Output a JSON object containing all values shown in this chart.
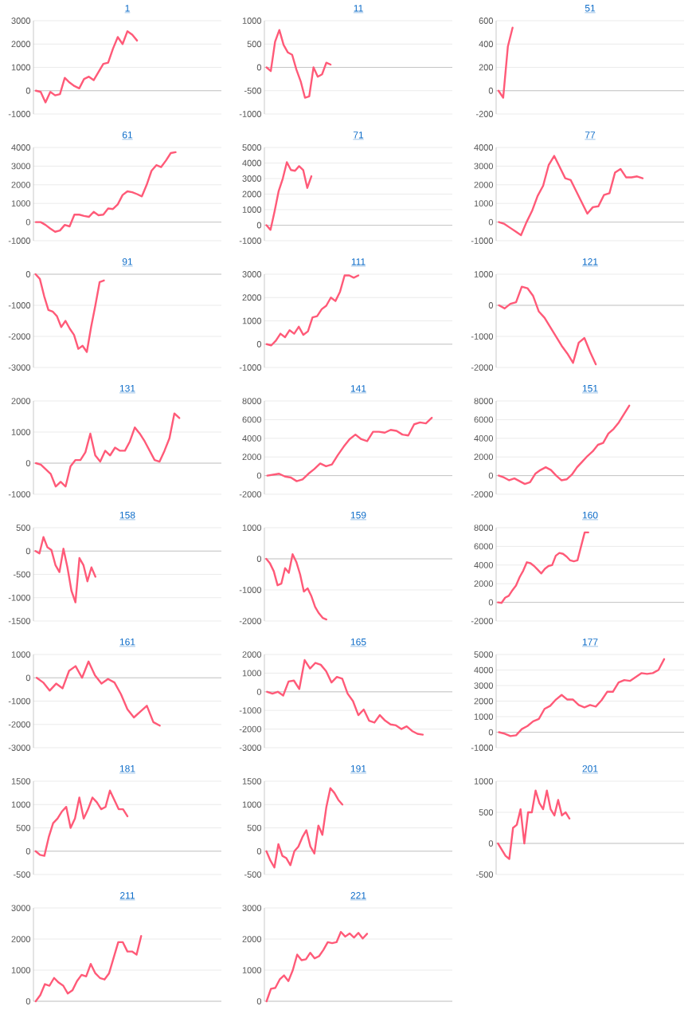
{
  "chart_data": [
    {
      "type": "line",
      "title": "1",
      "color": "#ff5a78",
      "grid": "y",
      "tick_labels": "y",
      "ylim": [
        -1000,
        3000
      ],
      "yticks": [
        -1000,
        0,
        1000,
        2000,
        3000
      ],
      "categories": [
        null,
        null,
        null,
        null,
        null,
        null,
        null,
        null,
        null,
        null,
        null,
        null,
        null,
        null,
        null,
        null,
        null,
        null,
        null,
        null,
        null,
        null,
        null,
        null,
        null,
        null,
        null,
        null,
        null,
        null,
        null,
        null,
        null,
        null,
        null,
        null,
        null,
        null,
        null
      ],
      "values": [
        0,
        -50,
        -500,
        -50,
        -200,
        -150,
        550,
        350,
        200,
        100,
        500,
        600,
        450,
        800,
        1150,
        1200,
        1800,
        2300,
        2000,
        2550,
        2400,
        2150,
        null,
        null,
        null,
        null,
        null,
        null,
        null,
        null,
        null,
        null,
        null,
        null,
        null,
        null,
        null,
        null,
        null
      ]
    },
    {
      "type": "line",
      "title": "11",
      "color": "#ff5a78",
      "grid": "y",
      "tick_labels": "y",
      "ylim": [
        -1000,
        1000
      ],
      "yticks": [
        -1000,
        -500,
        0,
        500,
        1000
      ],
      "categories": [
        null,
        null,
        null,
        null,
        null,
        null,
        null,
        null,
        null,
        null,
        null,
        null,
        null,
        null,
        null,
        null,
        null,
        null,
        null,
        null,
        null,
        null,
        null,
        null,
        null,
        null,
        null,
        null,
        null,
        null,
        null,
        null,
        null,
        null,
        null,
        null,
        null,
        null,
        null,
        null,
        null,
        null,
        null,
        null
      ],
      "values": [
        0,
        -80,
        550,
        800,
        480,
        320,
        270,
        -50,
        -300,
        -650,
        -620,
        0,
        -200,
        -150,
        100,
        60,
        null,
        null,
        null,
        null,
        null,
        null,
        null,
        null,
        null,
        null,
        null,
        null,
        null,
        null,
        null,
        null,
        null,
        null,
        null,
        null,
        null,
        null,
        null,
        null,
        null,
        null,
        null,
        null
      ]
    },
    {
      "type": "line",
      "title": "51",
      "color": "#ff5a78",
      "grid": "y",
      "tick_labels": "y",
      "ylim": [
        -200,
        600
      ],
      "yticks": [
        -200,
        0,
        200,
        400,
        600
      ],
      "categories": [
        null,
        null,
        null,
        null,
        null,
        null,
        null,
        null,
        null,
        null,
        null,
        null,
        null,
        null,
        null,
        null,
        null,
        null,
        null,
        null,
        null,
        null,
        null,
        null,
        null,
        null,
        null,
        null,
        null,
        null,
        null,
        null,
        null,
        null,
        null,
        null,
        null,
        null,
        null,
        null
      ],
      "values": [
        0,
        -60,
        380,
        540,
        null,
        null,
        null,
        null,
        null,
        null,
        null,
        null,
        null,
        null,
        null,
        null,
        null,
        null,
        null,
        null,
        null,
        null,
        null,
        null,
        null,
        null,
        null,
        null,
        null,
        null,
        null,
        null,
        null,
        null,
        null,
        null,
        null,
        null,
        null,
        null
      ]
    },
    {
      "type": "line",
      "title": "61",
      "color": "#ff5a78",
      "grid": "y",
      "tick_labels": "y",
      "ylim": [
        -1000,
        4000
      ],
      "yticks": [
        -1000,
        0,
        1000,
        2000,
        3000,
        4000
      ],
      "categories": [
        null,
        null,
        null,
        null,
        null,
        null,
        null,
        null,
        null,
        null,
        null,
        null,
        null,
        null,
        null,
        null,
        null,
        null,
        null,
        null,
        null,
        null,
        null,
        null,
        null,
        null,
        null,
        null,
        null,
        null,
        null,
        null,
        null,
        null,
        null,
        null,
        null,
        null,
        null
      ],
      "values": [
        0,
        0,
        -150,
        -350,
        -520,
        -450,
        -150,
        -230,
        400,
        400,
        330,
        280,
        550,
        370,
        400,
        730,
        700,
        950,
        1450,
        1650,
        1600,
        1500,
        1380,
        2000,
        2750,
        3050,
        2950,
        3300,
        3700,
        3750,
        null,
        null,
        null,
        null,
        null,
        null,
        null,
        null,
        null
      ]
    },
    {
      "type": "line",
      "title": "71",
      "color": "#ff5a78",
      "grid": "y",
      "tick_labels": "y",
      "ylim": [
        -1000,
        5000
      ],
      "yticks": [
        -1000,
        0,
        1000,
        2000,
        3000,
        4000,
        5000
      ],
      "categories": [
        null,
        null,
        null,
        null,
        null,
        null,
        null,
        null,
        null,
        null,
        null,
        null,
        null,
        null,
        null,
        null,
        null,
        null,
        null,
        null,
        null,
        null,
        null,
        null,
        null,
        null,
        null,
        null,
        null,
        null,
        null,
        null,
        null,
        null,
        null,
        null,
        null,
        null,
        null,
        null,
        null,
        null,
        null,
        null,
        null,
        null
      ],
      "values": [
        0,
        -300,
        900,
        2200,
        3000,
        4050,
        3550,
        3500,
        3800,
        3550,
        2400,
        3150,
        null,
        null,
        null,
        null,
        null,
        null,
        null,
        null,
        null,
        null,
        null,
        null,
        null,
        null,
        null,
        null,
        null,
        null,
        null,
        null,
        null,
        null,
        null,
        null,
        null,
        null,
        null,
        null,
        null,
        null,
        null,
        null,
        null,
        null
      ]
    },
    {
      "type": "line",
      "title": "77",
      "color": "#ff5a78",
      "grid": "y",
      "tick_labels": "y",
      "ylim": [
        -1000,
        4000
      ],
      "yticks": [
        -1000,
        0,
        1000,
        2000,
        3000,
        4000
      ],
      "categories": [
        null,
        null,
        null,
        null,
        null,
        null,
        null,
        null,
        null,
        null,
        null,
        null,
        null,
        null,
        null,
        null,
        null,
        null,
        null,
        null,
        null,
        null,
        null,
        null,
        null,
        null,
        null,
        null,
        null,
        null,
        null,
        null,
        null,
        null
      ],
      "values": [
        0,
        -100,
        -300,
        -500,
        -700,
        0,
        600,
        1400,
        1950,
        3050,
        3550,
        2950,
        2350,
        2250,
        1650,
        1050,
        450,
        800,
        850,
        1450,
        1550,
        2650,
        2850,
        2400,
        2400,
        2450,
        2350,
        null,
        null,
        null,
        null,
        null,
        null,
        null
      ]
    },
    {
      "type": "line",
      "title": "91",
      "color": "#ff5a78",
      "grid": "y",
      "tick_labels": "y",
      "ylim": [
        -3000,
        0
      ],
      "yticks": [
        -3000,
        -2000,
        -1000,
        0
      ],
      "categories": [
        null,
        null,
        null,
        null,
        null,
        null,
        null,
        null,
        null,
        null,
        null,
        null,
        null,
        null,
        null,
        null,
        null,
        null,
        null,
        null,
        null,
        null,
        null,
        null,
        null,
        null,
        null,
        null,
        null,
        null,
        null,
        null,
        null,
        null,
        null,
        null,
        null,
        null,
        null,
        null,
        null,
        null,
        null,
        null
      ],
      "values": [
        0,
        -150,
        -700,
        -1150,
        -1200,
        -1350,
        -1700,
        -1500,
        -1750,
        -1950,
        -2400,
        -2300,
        -2500,
        -1700,
        -1000,
        -250,
        -200,
        null,
        null,
        null,
        null,
        null,
        null,
        null,
        null,
        null,
        null,
        null,
        null,
        null,
        null,
        null,
        null,
        null,
        null,
        null,
        null,
        null,
        null,
        null,
        null,
        null,
        null,
        null
      ]
    },
    {
      "type": "line",
      "title": "111",
      "color": "#ff5a78",
      "grid": "y",
      "tick_labels": "y",
      "ylim": [
        -1000,
        3000
      ],
      "yticks": [
        -1000,
        0,
        1000,
        2000,
        3000
      ],
      "categories": [
        null,
        null,
        null,
        null,
        null,
        null,
        null,
        null,
        null,
        null,
        null,
        null,
        null,
        null,
        null,
        null,
        null,
        null,
        null,
        null,
        null,
        null,
        null,
        null,
        null,
        null,
        null,
        null,
        null,
        null,
        null,
        null,
        null,
        null,
        null,
        null,
        null,
        null,
        null,
        null,
        null
      ],
      "values": [
        0,
        -50,
        150,
        450,
        300,
        600,
        450,
        750,
        400,
        550,
        1150,
        1200,
        1500,
        1650,
        2000,
        1850,
        2250,
        2950,
        2950,
        2850,
        2950,
        null,
        null,
        null,
        null,
        null,
        null,
        null,
        null,
        null,
        null,
        null,
        null,
        null,
        null,
        null,
        null,
        null,
        null,
        null,
        null
      ]
    },
    {
      "type": "line",
      "title": "121",
      "color": "#ff5a78",
      "grid": "y",
      "tick_labels": "y",
      "ylim": [
        -2000,
        1000
      ],
      "yticks": [
        -2000,
        -1000,
        0,
        1000
      ],
      "categories": [
        null,
        null,
        null,
        null,
        null,
        null,
        null,
        null,
        null,
        null,
        null,
        null,
        null,
        null,
        null,
        null,
        null,
        null,
        null,
        null,
        null,
        null,
        null,
        null,
        null,
        null,
        null,
        null,
        null,
        null,
        null,
        null,
        null
      ],
      "values": [
        0,
        -100,
        50,
        100,
        600,
        550,
        300,
        -200,
        -400,
        -700,
        -1000,
        -1300,
        -1550,
        -1850,
        -1200,
        -1050,
        -1500,
        -1900,
        null,
        null,
        null,
        null,
        null,
        null,
        null,
        null,
        null,
        null,
        null,
        null,
        null,
        null,
        null
      ]
    },
    {
      "type": "line",
      "title": "131",
      "color": "#ff5a78",
      "grid": "y",
      "tick_labels": "y",
      "ylim": [
        -1000,
        2000
      ],
      "yticks": [
        -1000,
        0,
        1000,
        2000
      ],
      "categories": [
        null,
        null,
        null,
        null,
        null,
        null,
        null,
        null,
        null,
        null,
        null,
        null,
        null,
        null,
        null,
        null,
        null,
        null,
        null,
        null,
        null,
        null,
        null,
        null,
        null,
        null,
        null,
        null,
        null,
        null,
        null,
        null,
        null,
        null,
        null,
        null,
        null,
        null
      ],
      "values": [
        0,
        -50,
        -200,
        -350,
        -750,
        -600,
        -750,
        -100,
        100,
        100,
        350,
        950,
        250,
        50,
        400,
        250,
        500,
        400,
        400,
        700,
        1150,
        950,
        700,
        400,
        100,
        50,
        400,
        800,
        1600,
        1450,
        null,
        null,
        null,
        null,
        null,
        null,
        null,
        null
      ]
    },
    {
      "type": "line",
      "title": "141",
      "color": "#ff5a78",
      "grid": "y",
      "tick_labels": "y",
      "ylim": [
        -2000,
        8000
      ],
      "yticks": [
        -2000,
        0,
        2000,
        4000,
        6000,
        8000
      ],
      "categories": [
        null,
        null,
        null,
        null,
        null,
        null,
        null,
        null,
        null,
        null,
        null,
        null,
        null,
        null,
        null,
        null,
        null,
        null,
        null,
        null,
        null,
        null,
        null,
        null,
        null,
        null,
        null,
        null,
        null,
        null,
        null,
        null
      ],
      "values": [
        0,
        100,
        200,
        -100,
        -200,
        -600,
        -400,
        200,
        700,
        1300,
        1000,
        1200,
        2200,
        3100,
        3900,
        4400,
        3900,
        3700,
        4700,
        4700,
        4600,
        4900,
        4800,
        4400,
        4300,
        5500,
        5700,
        5600,
        6200,
        null,
        null,
        null
      ]
    },
    {
      "type": "line",
      "title": "151",
      "color": "#ff5a78",
      "grid": "y",
      "tick_labels": "y",
      "ylim": [
        -2000,
        8000
      ],
      "yticks": [
        -2000,
        0,
        2000,
        4000,
        6000,
        8000
      ],
      "categories": [
        null,
        null,
        null,
        null,
        null,
        null,
        null,
        null,
        null,
        null,
        null,
        null,
        null,
        null,
        null,
        null,
        null,
        null,
        null,
        null,
        null,
        null,
        null,
        null,
        null,
        null,
        null,
        null,
        null,
        null,
        null,
        null,
        null,
        null,
        null,
        null
      ],
      "values": [
        0,
        -200,
        -500,
        -300,
        -600,
        -900,
        -700,
        200,
        600,
        900,
        600,
        0,
        -500,
        -400,
        100,
        900,
        1500,
        2100,
        2600,
        3300,
        3500,
        4500,
        5000,
        5700,
        6600,
        7500,
        null,
        null,
        null,
        null,
        null,
        null,
        null,
        null,
        null,
        null
      ]
    },
    {
      "type": "line",
      "title": "158",
      "color": "#ff5a78",
      "grid": "y",
      "tick_labels": "y",
      "ylim": [
        -1500,
        500
      ],
      "yticks": [
        -1500,
        -1000,
        -500,
        0,
        500
      ],
      "categories": [
        null,
        null,
        null,
        null,
        null,
        null,
        null,
        null,
        null,
        null,
        null,
        null,
        null,
        null,
        null,
        null,
        null,
        null,
        null,
        null,
        null,
        null,
        null,
        null,
        null,
        null,
        null,
        null,
        null,
        null,
        null,
        null,
        null,
        null,
        null,
        null,
        null,
        null,
        null,
        null,
        null,
        null,
        null,
        null,
        null,
        null,
        null
      ],
      "values": [
        0,
        -50,
        300,
        80,
        20,
        -300,
        -450,
        50,
        -350,
        -850,
        -1100,
        -150,
        -300,
        -650,
        -350,
        -550,
        null,
        null,
        null,
        null,
        null,
        null,
        null,
        null,
        null,
        null,
        null,
        null,
        null,
        null,
        null,
        null,
        null,
        null,
        null,
        null,
        null,
        null,
        null,
        null,
        null,
        null,
        null,
        null,
        null,
        null,
        null
      ]
    },
    {
      "type": "line",
      "title": "159",
      "color": "#ff5a78",
      "grid": "y",
      "tick_labels": "y",
      "ylim": [
        -2000,
        1000
      ],
      "yticks": [
        -2000,
        -1000,
        0,
        1000
      ],
      "categories": [
        null,
        null,
        null,
        null,
        null,
        null,
        null,
        null,
        null,
        null,
        null,
        null,
        null,
        null,
        null,
        null,
        null,
        null,
        null,
        null,
        null,
        null,
        null,
        null,
        null,
        null,
        null,
        null,
        null,
        null,
        null,
        null,
        null,
        null,
        null,
        null,
        null,
        null,
        null,
        null,
        null,
        null,
        null,
        null,
        null,
        null,
        null,
        null,
        null,
        null
      ],
      "values": [
        0,
        -150,
        -400,
        -850,
        -800,
        -300,
        -450,
        150,
        -100,
        -500,
        -1050,
        -950,
        -1200,
        -1550,
        -1750,
        -1900,
        -1950,
        null,
        null,
        null,
        null,
        null,
        null,
        null,
        null,
        null,
        null,
        null,
        null,
        null,
        null,
        null,
        null,
        null,
        null,
        null,
        null,
        null,
        null,
        null,
        null,
        null,
        null,
        null,
        null,
        null,
        null,
        null,
        null,
        null
      ]
    },
    {
      "type": "line",
      "title": "160",
      "color": "#ff5a78",
      "grid": "y",
      "tick_labels": "y",
      "ylim": [
        -2000,
        8000
      ],
      "yticks": [
        -2000,
        0,
        2000,
        4000,
        6000,
        8000
      ],
      "categories": [
        null,
        null,
        null,
        null,
        null,
        null,
        null,
        null,
        null,
        null,
        null,
        null,
        null,
        null,
        null,
        null,
        null,
        null,
        null,
        null,
        null,
        null,
        null,
        null,
        null,
        null,
        null,
        null,
        null,
        null,
        null,
        null,
        null,
        null,
        null,
        null,
        null,
        null,
        null,
        null,
        null,
        null,
        null,
        null,
        null,
        null,
        null,
        null,
        null,
        null,
        null,
        null
      ],
      "values": [
        0,
        -50,
        500,
        700,
        1300,
        1800,
        2700,
        3400,
        4300,
        4200,
        3900,
        3500,
        3100,
        3600,
        3900,
        4000,
        5000,
        5300,
        5200,
        4900,
        4500,
        4400,
        4500,
        6000,
        7500,
        7500,
        null,
        null,
        null,
        null,
        null,
        null,
        null,
        null,
        null,
        null,
        null,
        null,
        null,
        null,
        null,
        null,
        null,
        null,
        null,
        null,
        null,
        null,
        null,
        null,
        null,
        null
      ]
    },
    {
      "type": "line",
      "title": "161",
      "color": "#ff5a78",
      "grid": "y",
      "tick_labels": "y",
      "ylim": [
        -3000,
        1000
      ],
      "yticks": [
        -3000,
        -2000,
        -1000,
        0,
        1000
      ],
      "categories": [
        null,
        null,
        null,
        null,
        null,
        null,
        null,
        null,
        null,
        null,
        null,
        null,
        null,
        null,
        null,
        null,
        null,
        null,
        null,
        null,
        null,
        null,
        null,
        null,
        null,
        null,
        null,
        null,
        null
      ],
      "values": [
        0,
        -200,
        -550,
        -250,
        -450,
        300,
        500,
        0,
        700,
        100,
        -250,
        -50,
        -200,
        -700,
        -1350,
        -1700,
        -1450,
        -1200,
        -1900,
        -2050,
        null,
        null,
        null,
        null,
        null,
        null,
        null,
        null,
        null
      ]
    },
    {
      "type": "line",
      "title": "165",
      "color": "#ff5a78",
      "grid": "y",
      "tick_labels": "y",
      "ylim": [
        -3000,
        2000
      ],
      "yticks": [
        -3000,
        -2000,
        -1000,
        0,
        1000,
        2000
      ],
      "categories": [
        null,
        null,
        null,
        null,
        null,
        null,
        null,
        null,
        null,
        null,
        null,
        null,
        null,
        null,
        null,
        null,
        null,
        null,
        null,
        null,
        null,
        null,
        null,
        null,
        null,
        null,
        null,
        null,
        null,
        null,
        null,
        null,
        null,
        null,
        null
      ],
      "values": [
        0,
        -100,
        0,
        -200,
        550,
        600,
        150,
        1700,
        1250,
        1550,
        1450,
        1100,
        500,
        800,
        700,
        -100,
        -500,
        -1250,
        -950,
        -1550,
        -1650,
        -1250,
        -1550,
        -1750,
        -1800,
        -2000,
        -1850,
        -2100,
        -2250,
        -2300,
        null,
        null,
        null,
        null,
        null
      ]
    },
    {
      "type": "line",
      "title": "177",
      "color": "#ff5a78",
      "grid": "y",
      "tick_labels": "y",
      "ylim": [
        -1000,
        5000
      ],
      "yticks": [
        -1000,
        0,
        1000,
        2000,
        3000,
        4000,
        5000
      ],
      "categories": [
        null,
        null,
        null,
        null,
        null,
        null,
        null,
        null,
        null,
        null,
        null,
        null,
        null,
        null,
        null,
        null,
        null,
        null,
        null,
        null,
        null,
        null,
        null,
        null,
        null,
        null,
        null,
        null,
        null,
        null,
        null,
        null,
        null
      ],
      "values": [
        0,
        -100,
        -250,
        -200,
        200,
        400,
        700,
        850,
        1500,
        1700,
        2100,
        2400,
        2100,
        2100,
        1750,
        1600,
        1750,
        1650,
        2050,
        2600,
        2600,
        3200,
        3350,
        3300,
        3550,
        3800,
        3750,
        3800,
        4000,
        4700,
        null,
        null,
        null
      ]
    },
    {
      "type": "line",
      "title": "181",
      "color": "#ff5a78",
      "grid": "y",
      "tick_labels": "y",
      "ylim": [
        -500,
        1500
      ],
      "yticks": [
        -500,
        0,
        500,
        1000,
        1500
      ],
      "categories": [
        null,
        null,
        null,
        null,
        null,
        null,
        null,
        null,
        null,
        null,
        null,
        null,
        null,
        null,
        null,
        null,
        null,
        null,
        null,
        null,
        null,
        null,
        null,
        null,
        null,
        null,
        null,
        null,
        null,
        null,
        null,
        null,
        null,
        null,
        null,
        null,
        null,
        null,
        null,
        null,
        null,
        null,
        null
      ],
      "values": [
        0,
        -80,
        -100,
        300,
        600,
        700,
        850,
        950,
        500,
        700,
        1150,
        700,
        900,
        1150,
        1050,
        900,
        950,
        1300,
        1100,
        900,
        900,
        750,
        null,
        null,
        null,
        null,
        null,
        null,
        null,
        null,
        null,
        null,
        null,
        null,
        null,
        null,
        null,
        null,
        null,
        null,
        null,
        null,
        null
      ]
    },
    {
      "type": "line",
      "title": "191",
      "color": "#ff5a78",
      "grid": "y",
      "tick_labels": "y",
      "ylim": [
        -500,
        1500
      ],
      "yticks": [
        -500,
        0,
        500,
        1000,
        1500
      ],
      "categories": [
        null,
        null,
        null,
        null,
        null,
        null,
        null,
        null,
        null,
        null,
        null,
        null,
        null,
        null,
        null,
        null,
        null,
        null,
        null,
        null,
        null,
        null,
        null,
        null,
        null,
        null,
        null,
        null,
        null,
        null,
        null,
        null,
        null,
        null,
        null,
        null,
        null,
        null,
        null,
        null,
        null,
        null,
        null,
        null,
        null,
        null,
        null
      ],
      "values": [
        0,
        -200,
        -350,
        150,
        -100,
        -150,
        -300,
        0,
        100,
        300,
        450,
        100,
        -50,
        550,
        350,
        950,
        1350,
        1250,
        1100,
        1000,
        null,
        null,
        null,
        null,
        null,
        null,
        null,
        null,
        null,
        null,
        null,
        null,
        null,
        null,
        null,
        null,
        null,
        null,
        null,
        null,
        null,
        null,
        null,
        null,
        null,
        null,
        null
      ]
    },
    {
      "type": "line",
      "title": "201",
      "color": "#ff5a78",
      "grid": "y",
      "tick_labels": "y",
      "ylim": [
        -500,
        1000
      ],
      "yticks": [
        -500,
        0,
        500,
        1000
      ],
      "categories": [
        null,
        null,
        null,
        null,
        null,
        null,
        null,
        null,
        null,
        null,
        null,
        null,
        null,
        null,
        null,
        null,
        null,
        null,
        null,
        null,
        null,
        null,
        null,
        null,
        null,
        null,
        null,
        null,
        null,
        null,
        null,
        null,
        null,
        null,
        null,
        null,
        null,
        null,
        null,
        null,
        null,
        null,
        null,
        null,
        null,
        null,
        null,
        null,
        null,
        null
      ],
      "values": [
        0,
        -100,
        -200,
        -250,
        250,
        300,
        550,
        0,
        500,
        500,
        850,
        650,
        550,
        850,
        550,
        450,
        700,
        450,
        500,
        400,
        null,
        null,
        null,
        null,
        null,
        null,
        null,
        null,
        null,
        null,
        null,
        null,
        null,
        null,
        null,
        null,
        null,
        null,
        null,
        null,
        null,
        null,
        null,
        null,
        null,
        null,
        null,
        null,
        null,
        null
      ]
    },
    {
      "type": "line",
      "title": "211",
      "color": "#ff5a78",
      "grid": "y",
      "tick_labels": "y",
      "ylim": [
        0,
        3000
      ],
      "yticks": [
        0,
        1000,
        2000,
        3000
      ],
      "categories": [
        null,
        null,
        null,
        null,
        null,
        null,
        null,
        null,
        null,
        null,
        null,
        null,
        null,
        null,
        null,
        null,
        null,
        null,
        null,
        null,
        null,
        null,
        null,
        null,
        null,
        null,
        null,
        null,
        null,
        null,
        null,
        null,
        null,
        null,
        null,
        null,
        null,
        null,
        null,
        null,
        null
      ],
      "values": [
        0,
        200,
        550,
        500,
        750,
        600,
        500,
        250,
        350,
        650,
        850,
        800,
        1200,
        900,
        750,
        700,
        900,
        1400,
        1900,
        1900,
        1600,
        1600,
        1500,
        2100,
        null,
        null,
        null,
        null,
        null,
        null,
        null,
        null,
        null,
        null,
        null,
        null,
        null,
        null,
        null,
        null,
        null
      ]
    },
    {
      "type": "line",
      "title": "221",
      "color": "#ff5a78",
      "grid": "y",
      "tick_labels": "y",
      "ylim": [
        0,
        3000
      ],
      "yticks": [
        0,
        1000,
        2000,
        3000
      ],
      "categories": [
        null,
        null,
        null,
        null,
        null,
        null,
        null,
        null,
        null,
        null,
        null,
        null,
        null,
        null,
        null,
        null,
        null,
        null,
        null,
        null,
        null,
        null,
        null,
        null,
        null,
        null,
        null,
        null,
        null,
        null,
        null,
        null,
        null,
        null,
        null,
        null,
        null,
        null,
        null,
        null,
        null,
        null,
        null
      ],
      "values": [
        0,
        400,
        430,
        700,
        830,
        650,
        1000,
        1500,
        1320,
        1350,
        1560,
        1380,
        1450,
        1650,
        1900,
        1870,
        1900,
        2230,
        2080,
        2180,
        2050,
        2200,
        2020,
        2170,
        null,
        null,
        null,
        null,
        null,
        null,
        null,
        null,
        null,
        null,
        null,
        null,
        null,
        null,
        null,
        null,
        null,
        null,
        null
      ]
    }
  ]
}
